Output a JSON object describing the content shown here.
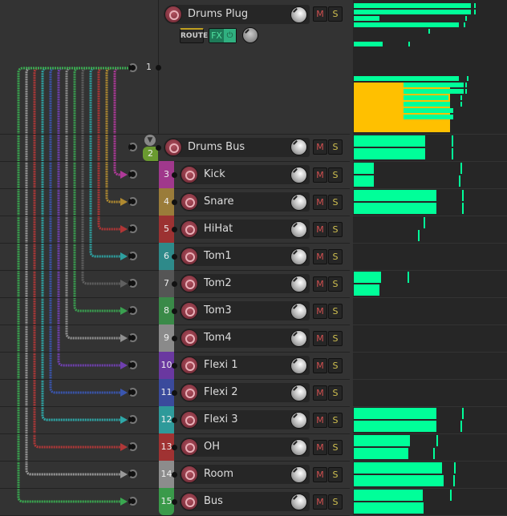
{
  "colors": {
    "meter": "#00ff99",
    "meter_clip": "#ffc000",
    "route_bg": "#2a2a2a",
    "fx": "#2aa070"
  },
  "parent": {
    "number": "1",
    "name": "Drums Plug",
    "mute": "M",
    "solo": "S",
    "route": "ROUTE",
    "fx": "FX",
    "fx_power": "⏻",
    "meters": [
      [
        0.77,
        0.79
      ],
      [
        0.77,
        0.79
      ],
      [
        0.17,
        0.73
      ],
      [
        0.69,
        0.72
      ],
      [
        null,
        0.49
      ],
      [
        0.19,
        0.36
      ],
      [
        0.69,
        0.74
      ],
      [
        0.72,
        0.73
      ],
      [
        0.72,
        0.73
      ],
      [
        0.62,
        0.7
      ],
      [
        0.63,
        0.7
      ],
      [
        0.65,
        null
      ],
      [
        0.65,
        null
      ]
    ],
    "clip_level": 0.63
  },
  "bus": {
    "number": "2",
    "name": "Drums Bus",
    "mute": "M",
    "solo": "S",
    "color": "#6a9a30",
    "meters": [
      [
        0.47,
        0.64
      ],
      [
        0.47,
        0.64
      ]
    ]
  },
  "tracks": [
    {
      "number": "3",
      "name": "Kick",
      "color": "#a0388c",
      "wire": "#b03a9a",
      "meters": [
        [
          0.13,
          0.7
        ],
        [
          0.13,
          0.69
        ]
      ]
    },
    {
      "number": "4",
      "name": "Snare",
      "color": "#9a7c3a",
      "wire": "#b08a30",
      "meters": [
        [
          0.54,
          0.71
        ],
        [
          0.54,
          0.71
        ]
      ]
    },
    {
      "number": "5",
      "name": "HiHat",
      "color": "#9c3232",
      "wire": "#b03636",
      "meters": [
        [
          0,
          0.46
        ],
        [
          0,
          0.42
        ]
      ]
    },
    {
      "number": "6",
      "name": "Tom1",
      "color": "#2e8a8a",
      "wire": "#2ea0a0",
      "meters": []
    },
    {
      "number": "7",
      "name": "Tom2",
      "color": "#555555",
      "wire": "#606060",
      "meters": [
        [
          0.18,
          0.35
        ],
        [
          0.17,
          null
        ]
      ]
    },
    {
      "number": "8",
      "name": "Tom3",
      "color": "#3a8a48",
      "wire": "#3aa050",
      "meters": []
    },
    {
      "number": "9",
      "name": "Tom4",
      "color": "#8a8a8a",
      "wire": "#909090",
      "meters": []
    },
    {
      "number": "10",
      "name": "Flexi 1",
      "color": "#6a38a0",
      "wire": "#7040b0",
      "meters": []
    },
    {
      "number": "11",
      "name": "Flexi 2",
      "color": "#3a4a9c",
      "wire": "#3a56b0",
      "meters": []
    },
    {
      "number": "12",
      "name": "Flexi 3",
      "color": "#2e9a9a",
      "wire": "#2ea8a8",
      "meters": [
        [
          0.54,
          0.71
        ],
        [
          0.54,
          0.7
        ]
      ]
    },
    {
      "number": "13",
      "name": "OH",
      "color": "#a03232",
      "wire": "#b03838",
      "meters": [
        [
          0.37,
          0.54
        ],
        [
          0.36,
          0.52
        ]
      ]
    },
    {
      "number": "14",
      "name": "Room",
      "color": "#8c8c8c",
      "wire": "#9a9a9a",
      "meters": [
        [
          0.58,
          0.66
        ],
        [
          0.59,
          0.65
        ]
      ]
    },
    {
      "number": "15",
      "name": "Bus",
      "color": "#3a9a4a",
      "wire": "#3aa850",
      "meters": [
        [
          0.45,
          0.63
        ],
        [
          0.46,
          null
        ]
      ]
    }
  ],
  "labels": {
    "mute": "M",
    "solo": "S"
  }
}
